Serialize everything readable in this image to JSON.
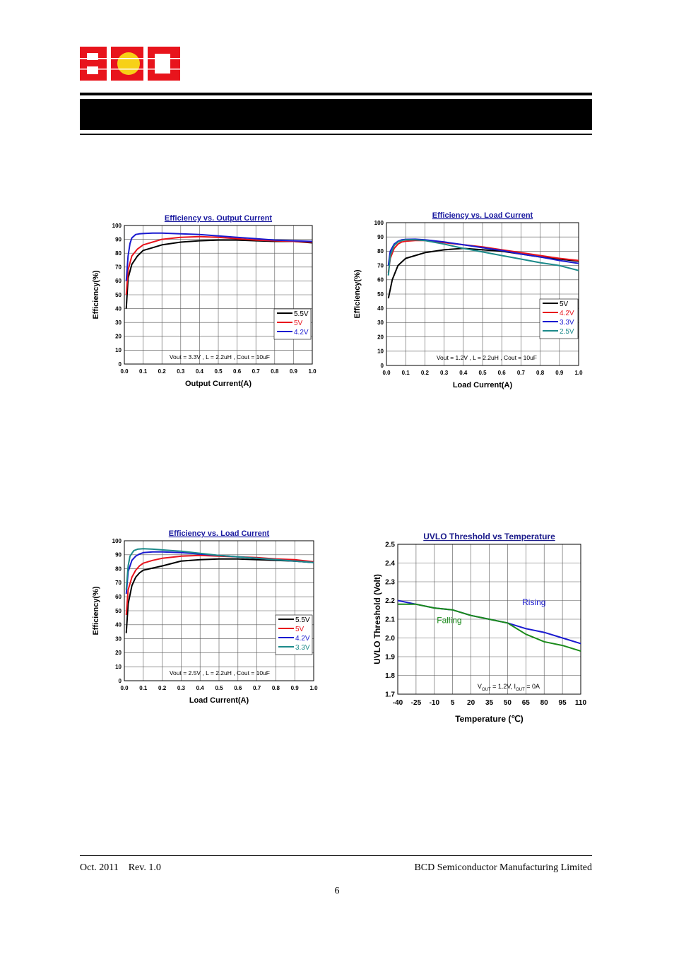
{
  "header": {
    "logo": {
      "text": "BCD",
      "colors": {
        "red": "#e8141c",
        "yellow": "#f7d117"
      }
    }
  },
  "footer": {
    "date": "Oct. 2011",
    "revision": "Rev. 1.0",
    "company": "BCD Semiconductor Manufacturing Limited",
    "page_number": "6"
  },
  "chart_data": [
    {
      "type": "line",
      "title": "Efficiency vs. Output Current",
      "xlabel": "Output Current(A)",
      "ylabel": "Efficiency(%)",
      "xlim": [
        0,
        1.0
      ],
      "ylim": [
        0,
        100
      ],
      "xticks": [
        "0.0",
        "0.1",
        "0.2",
        "0.3",
        "0.4",
        "0.5",
        "0.6",
        "0.7",
        "0.8",
        "0.9",
        "1.0"
      ],
      "yticks": [
        "0",
        "10",
        "20",
        "30",
        "40",
        "50",
        "60",
        "70",
        "80",
        "90",
        "100"
      ],
      "grid": true,
      "legend": "lower-right",
      "annotation": "Vout = 3.3V , L = 2.2uH , Cout = 10uF",
      "series": [
        {
          "name": "5.5V",
          "color": "#000000",
          "x": [
            0.01,
            0.02,
            0.04,
            0.07,
            0.1,
            0.15,
            0.2,
            0.3,
            0.4,
            0.5,
            0.6,
            0.7,
            0.8,
            0.9,
            1.0
          ],
          "y": [
            40,
            62,
            72,
            78,
            82,
            84,
            86,
            88,
            89,
            89.5,
            89.5,
            89,
            88.5,
            88.5,
            87.5
          ]
        },
        {
          "name": "5V",
          "color": "#e8141c",
          "x": [
            0.01,
            0.02,
            0.04,
            0.07,
            0.1,
            0.15,
            0.2,
            0.3,
            0.4,
            0.5,
            0.6,
            0.7,
            0.8,
            0.9,
            1.0
          ],
          "y": [
            50,
            68,
            78,
            83,
            86,
            88,
            90,
            91.5,
            92,
            91.5,
            90.5,
            89.5,
            89,
            88.5,
            88
          ]
        },
        {
          "name": "4.2V",
          "color": "#1a1ad0",
          "x": [
            0.01,
            0.02,
            0.03,
            0.04,
            0.06,
            0.08,
            0.1,
            0.15,
            0.2,
            0.3,
            0.4,
            0.5,
            0.6,
            0.7,
            0.8,
            0.9,
            1.0
          ],
          "y": [
            60,
            78,
            87,
            91,
            93.5,
            94,
            94.2,
            94.5,
            94.5,
            94,
            93.5,
            92.5,
            91.5,
            90.5,
            89.5,
            89,
            88.5
          ]
        }
      ]
    },
    {
      "type": "line",
      "title": "Efficiency vs. Load Current",
      "xlabel": "Load Current(A)",
      "ylabel": "Efficiency(%)",
      "xlim": [
        0,
        1.0
      ],
      "ylim": [
        0,
        100
      ],
      "xticks": [
        "0.0",
        "0.1",
        "0.2",
        "0.3",
        "0.4",
        "0.5",
        "0.6",
        "0.7",
        "0.8",
        "0.9",
        "1.0"
      ],
      "yticks": [
        "0",
        "10",
        "20",
        "30",
        "40",
        "50",
        "60",
        "70",
        "80",
        "90",
        "100"
      ],
      "grid": true,
      "legend": "lower-right",
      "annotation": "Vout = 1.2V , L = 2.2uH , Cout = 10uF",
      "series": [
        {
          "name": "5V",
          "color": "#000000",
          "x": [
            0.01,
            0.03,
            0.06,
            0.1,
            0.15,
            0.2,
            0.3,
            0.4,
            0.5,
            0.6,
            0.7,
            0.8,
            0.9,
            1.0
          ],
          "y": [
            47,
            60,
            70,
            75,
            77,
            79,
            81,
            82,
            81,
            80,
            78,
            76,
            74.5,
            73
          ]
        },
        {
          "name": "4.2V",
          "color": "#e8141c",
          "x": [
            0.01,
            0.02,
            0.04,
            0.06,
            0.08,
            0.1,
            0.15,
            0.2,
            0.3,
            0.4,
            0.5,
            0.6,
            0.7,
            0.8,
            0.9,
            1.0
          ],
          "y": [
            65,
            75,
            82,
            85,
            86.5,
            87,
            87.5,
            87.5,
            86,
            84.5,
            83,
            81,
            79,
            77,
            75,
            73.5
          ]
        },
        {
          "name": "3.3V",
          "color": "#1a1ad0",
          "x": [
            0.01,
            0.02,
            0.04,
            0.06,
            0.08,
            0.1,
            0.15,
            0.2,
            0.3,
            0.4,
            0.5,
            0.6,
            0.7,
            0.8,
            0.9,
            1.0
          ],
          "y": [
            70,
            80,
            85,
            87,
            88,
            88.3,
            88.4,
            88,
            86.5,
            84.5,
            82.5,
            80.5,
            78,
            76,
            73.5,
            71.5
          ]
        },
        {
          "name": "2.5V",
          "color": "#1c8a8a",
          "x": [
            0.01,
            0.02,
            0.04,
            0.06,
            0.08,
            0.1,
            0.15,
            0.2,
            0.3,
            0.4,
            0.5,
            0.6,
            0.7,
            0.8,
            0.9,
            1.0
          ],
          "y": [
            63,
            77,
            84,
            86.5,
            87.5,
            88,
            88,
            87.5,
            85,
            82,
            79.5,
            77,
            74.5,
            72,
            70,
            66.5
          ]
        }
      ]
    },
    {
      "type": "line",
      "title": "Efficiency vs. Load Current",
      "xlabel": "Load Current(A)",
      "ylabel": "Efficiency(%)",
      "xlim": [
        0,
        1.0
      ],
      "ylim": [
        0,
        100
      ],
      "xticks": [
        "0.0",
        "0.1",
        "0.2",
        "0.3",
        "0.4",
        "0.5",
        "0.6",
        "0.7",
        "0.8",
        "0.9",
        "1.0"
      ],
      "yticks": [
        "0",
        "10",
        "20",
        "30",
        "40",
        "50",
        "60",
        "70",
        "80",
        "90",
        "100"
      ],
      "grid": true,
      "legend": "lower-right",
      "annotation": "Vout = 2.5V , L = 2.2uH , Cout = 10uF",
      "series": [
        {
          "name": "5.5V",
          "color": "#000000",
          "x": [
            0.01,
            0.02,
            0.04,
            0.06,
            0.08,
            0.1,
            0.15,
            0.2,
            0.3,
            0.4,
            0.5,
            0.6,
            0.7,
            0.8,
            0.9,
            1.0
          ],
          "y": [
            34,
            55,
            68,
            74,
            77,
            79,
            80.5,
            82,
            85.5,
            86.5,
            87,
            87,
            86.5,
            86,
            85.5,
            84.5
          ]
        },
        {
          "name": "5V",
          "color": "#e8141c",
          "x": [
            0.01,
            0.02,
            0.04,
            0.06,
            0.08,
            0.1,
            0.15,
            0.2,
            0.3,
            0.4,
            0.5,
            0.6,
            0.7,
            0.8,
            0.9,
            1.0
          ],
          "y": [
            47,
            65,
            74,
            79,
            82,
            84,
            86,
            87.5,
            89,
            89.5,
            89,
            88.5,
            88,
            87,
            86.5,
            85
          ]
        },
        {
          "name": "4.2V",
          "color": "#1a1ad0",
          "x": [
            0.01,
            0.02,
            0.04,
            0.06,
            0.08,
            0.1,
            0.15,
            0.2,
            0.3,
            0.4,
            0.5,
            0.6,
            0.7,
            0.8,
            0.9,
            1.0
          ],
          "y": [
            62,
            78,
            86,
            89,
            90.5,
            91.5,
            92,
            92,
            91.5,
            90.5,
            89.5,
            88.5,
            87.5,
            86.5,
            85.5,
            84.5
          ]
        },
        {
          "name": "3.3V",
          "color": "#1c8a8a",
          "x": [
            0.01,
            0.02,
            0.03,
            0.05,
            0.07,
            0.1,
            0.15,
            0.2,
            0.3,
            0.4,
            0.5,
            0.6,
            0.7,
            0.8,
            0.9,
            1.0
          ],
          "y": [
            65,
            82,
            89,
            93,
            94,
            94.3,
            94,
            93.5,
            92.5,
            91,
            89.5,
            88.5,
            87.5,
            86.5,
            85.5,
            84.5
          ]
        }
      ]
    },
    {
      "type": "line",
      "title": "UVLO Threshold vs Temperature",
      "xlabel": "Temperature (℃)",
      "ylabel": "UVLO Threshold (Volt)",
      "xlim": [
        -40,
        110
      ],
      "ylim": [
        1.7,
        2.5
      ],
      "xticks": [
        "-40",
        "-25",
        "-10",
        "5",
        "20",
        "35",
        "50",
        "65",
        "80",
        "95",
        "110"
      ],
      "yticks": [
        "1.7",
        "1.8",
        "1.9",
        "2.0",
        "2.1",
        "2.2",
        "2.3",
        "2.4",
        "2.5"
      ],
      "grid": true,
      "annotation_parts": {
        "v": "V",
        "v_sub": "OUT",
        "mid": " = 1.2V, I",
        "i_sub": "OUT",
        "end": " = 0A"
      },
      "series": [
        {
          "name": "Rising",
          "color": "#1a1ad0",
          "x": [
            -40,
            -25,
            -10,
            5,
            20,
            35,
            50,
            65,
            80,
            95,
            110
          ],
          "y": [
            2.2,
            2.18,
            2.16,
            2.15,
            2.12,
            2.1,
            2.08,
            2.05,
            2.03,
            2.0,
            1.97
          ]
        },
        {
          "name": "Falling",
          "color": "#1a8a1a",
          "x": [
            -40,
            -25,
            -10,
            5,
            20,
            35,
            50,
            65,
            80,
            95,
            110
          ],
          "y": [
            2.18,
            2.18,
            2.16,
            2.15,
            2.12,
            2.1,
            2.08,
            2.02,
            1.98,
            1.96,
            1.93
          ]
        }
      ]
    }
  ]
}
